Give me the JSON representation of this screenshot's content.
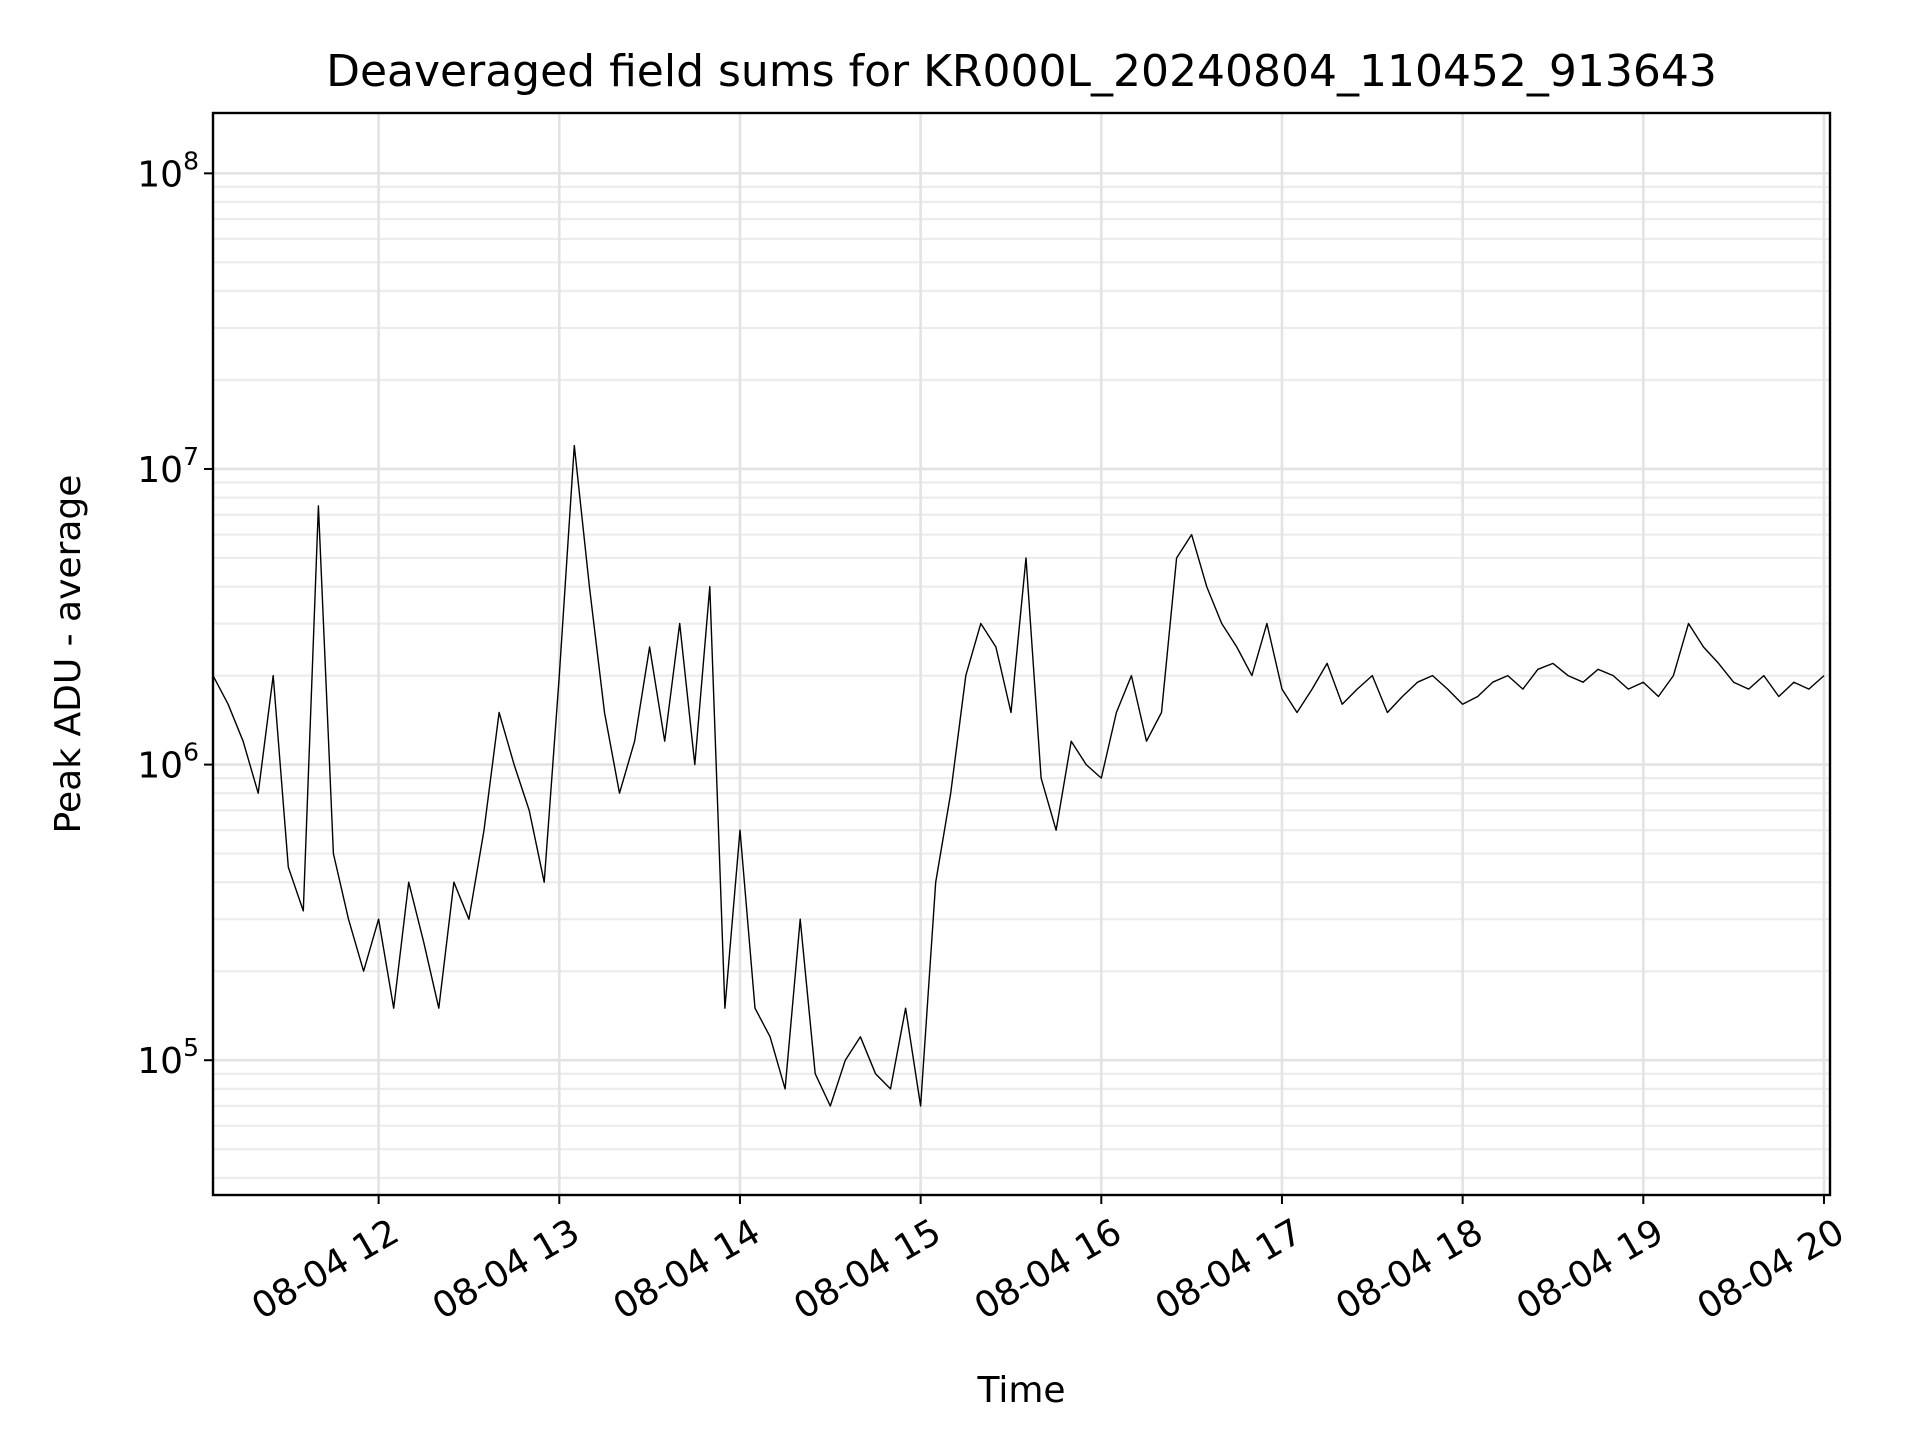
{
  "chart_data": {
    "type": "line",
    "title": "Deaveraged field sums for KR000L_20240804_110452_913643",
    "xlabel": "Time",
    "ylabel": "Peak ADU - average",
    "yscale": "log",
    "ylim": [
      35000,
      160000000
    ],
    "xlim": [
      "2024-08-04 11:05",
      "2024-08-04 20:02"
    ],
    "x_ticks": [
      {
        "time": "2024-08-04 12:00",
        "label": "08-04 12"
      },
      {
        "time": "2024-08-04 13:00",
        "label": "08-04 13"
      },
      {
        "time": "2024-08-04 14:00",
        "label": "08-04 14"
      },
      {
        "time": "2024-08-04 15:00",
        "label": "08-04 15"
      },
      {
        "time": "2024-08-04 16:00",
        "label": "08-04 16"
      },
      {
        "time": "2024-08-04 17:00",
        "label": "08-04 17"
      },
      {
        "time": "2024-08-04 18:00",
        "label": "08-04 18"
      },
      {
        "time": "2024-08-04 19:00",
        "label": "08-04 19"
      },
      {
        "time": "2024-08-04 20:00",
        "label": "08-04 20"
      }
    ],
    "y_ticks": [
      {
        "value": 100000,
        "base": "10",
        "exp": "5"
      },
      {
        "value": 1000000,
        "base": "10",
        "exp": "6"
      },
      {
        "value": 10000000,
        "base": "10",
        "exp": "7"
      },
      {
        "value": 100000000,
        "base": "10",
        "exp": "8"
      }
    ],
    "grid": true,
    "line_color": "#000000",
    "series": [
      {
        "x": [
          "2024-08-04 11:05",
          "2024-08-04 11:10",
          "2024-08-04 11:15",
          "2024-08-04 11:20",
          "2024-08-04 11:25",
          "2024-08-04 11:30",
          "2024-08-04 11:35",
          "2024-08-04 11:40",
          "2024-08-04 11:45",
          "2024-08-04 11:50",
          "2024-08-04 11:55",
          "2024-08-04 12:00",
          "2024-08-04 12:05",
          "2024-08-04 12:10",
          "2024-08-04 12:15",
          "2024-08-04 12:20",
          "2024-08-04 12:25",
          "2024-08-04 12:30",
          "2024-08-04 12:35",
          "2024-08-04 12:40",
          "2024-08-04 12:45",
          "2024-08-04 12:50",
          "2024-08-04 12:55",
          "2024-08-04 13:00",
          "2024-08-04 13:05",
          "2024-08-04 13:10",
          "2024-08-04 13:15",
          "2024-08-04 13:20",
          "2024-08-04 13:25",
          "2024-08-04 13:30",
          "2024-08-04 13:35",
          "2024-08-04 13:40",
          "2024-08-04 13:45",
          "2024-08-04 13:50",
          "2024-08-04 13:55",
          "2024-08-04 14:00",
          "2024-08-04 14:05",
          "2024-08-04 14:10",
          "2024-08-04 14:15",
          "2024-08-04 14:20",
          "2024-08-04 14:25",
          "2024-08-04 14:30",
          "2024-08-04 14:35",
          "2024-08-04 14:40",
          "2024-08-04 14:45",
          "2024-08-04 14:50",
          "2024-08-04 14:55",
          "2024-08-04 15:00",
          "2024-08-04 15:05",
          "2024-08-04 15:10",
          "2024-08-04 15:15",
          "2024-08-04 15:20",
          "2024-08-04 15:25",
          "2024-08-04 15:30",
          "2024-08-04 15:35",
          "2024-08-04 15:40",
          "2024-08-04 15:45",
          "2024-08-04 15:50",
          "2024-08-04 15:55",
          "2024-08-04 16:00",
          "2024-08-04 16:05",
          "2024-08-04 16:10",
          "2024-08-04 16:15",
          "2024-08-04 16:20",
          "2024-08-04 16:25",
          "2024-08-04 16:30",
          "2024-08-04 16:35",
          "2024-08-04 16:40",
          "2024-08-04 16:45",
          "2024-08-04 16:50",
          "2024-08-04 16:55",
          "2024-08-04 17:00",
          "2024-08-04 17:05",
          "2024-08-04 17:10",
          "2024-08-04 17:15",
          "2024-08-04 17:20",
          "2024-08-04 17:25",
          "2024-08-04 17:30",
          "2024-08-04 17:35",
          "2024-08-04 17:40",
          "2024-08-04 17:45",
          "2024-08-04 17:50",
          "2024-08-04 17:55",
          "2024-08-04 18:00",
          "2024-08-04 18:05",
          "2024-08-04 18:10",
          "2024-08-04 18:15",
          "2024-08-04 18:20",
          "2024-08-04 18:25",
          "2024-08-04 18:30",
          "2024-08-04 18:35",
          "2024-08-04 18:40",
          "2024-08-04 18:45",
          "2024-08-04 18:50",
          "2024-08-04 18:55",
          "2024-08-04 19:00",
          "2024-08-04 19:05",
          "2024-08-04 19:10",
          "2024-08-04 19:15",
          "2024-08-04 19:20",
          "2024-08-04 19:25",
          "2024-08-04 19:30",
          "2024-08-04 19:35",
          "2024-08-04 19:40",
          "2024-08-04 19:45",
          "2024-08-04 19:50",
          "2024-08-04 19:55",
          "2024-08-04 20:00"
        ],
        "y": [
          2000000,
          1600000,
          1200000,
          800000,
          2000000,
          450000,
          320000,
          7500000,
          500000,
          300000,
          200000,
          300000,
          150000,
          400000,
          250000,
          150000,
          400000,
          300000,
          600000,
          1500000,
          1000000,
          700000,
          400000,
          2000000,
          12000000,
          4000000,
          1500000,
          800000,
          1200000,
          2500000,
          1200000,
          3000000,
          1000000,
          4000000,
          150000,
          600000,
          150000,
          120000,
          80000,
          300000,
          90000,
          70000,
          100000,
          120000,
          90000,
          80000,
          150000,
          70000,
          400000,
          800000,
          2000000,
          3000000,
          2500000,
          1500000,
          5000000,
          900000,
          600000,
          1200000,
          1000000,
          900000,
          1500000,
          2000000,
          1200000,
          1500000,
          5000000,
          6000000,
          4000000,
          3000000,
          2500000,
          2000000,
          3000000,
          1800000,
          1500000,
          1800000,
          2200000,
          1600000,
          1800000,
          2000000,
          1500000,
          1700000,
          1900000,
          2000000,
          1800000,
          1600000,
          1700000,
          1900000,
          2000000,
          1800000,
          2100000,
          2200000,
          2000000,
          1900000,
          2100000,
          2000000,
          1800000,
          1900000,
          1700000,
          2000000,
          3000000,
          2500000,
          2200000,
          1900000,
          1800000,
          2000000,
          1700000,
          1900000,
          1800000,
          2000000
        ]
      }
    ]
  }
}
